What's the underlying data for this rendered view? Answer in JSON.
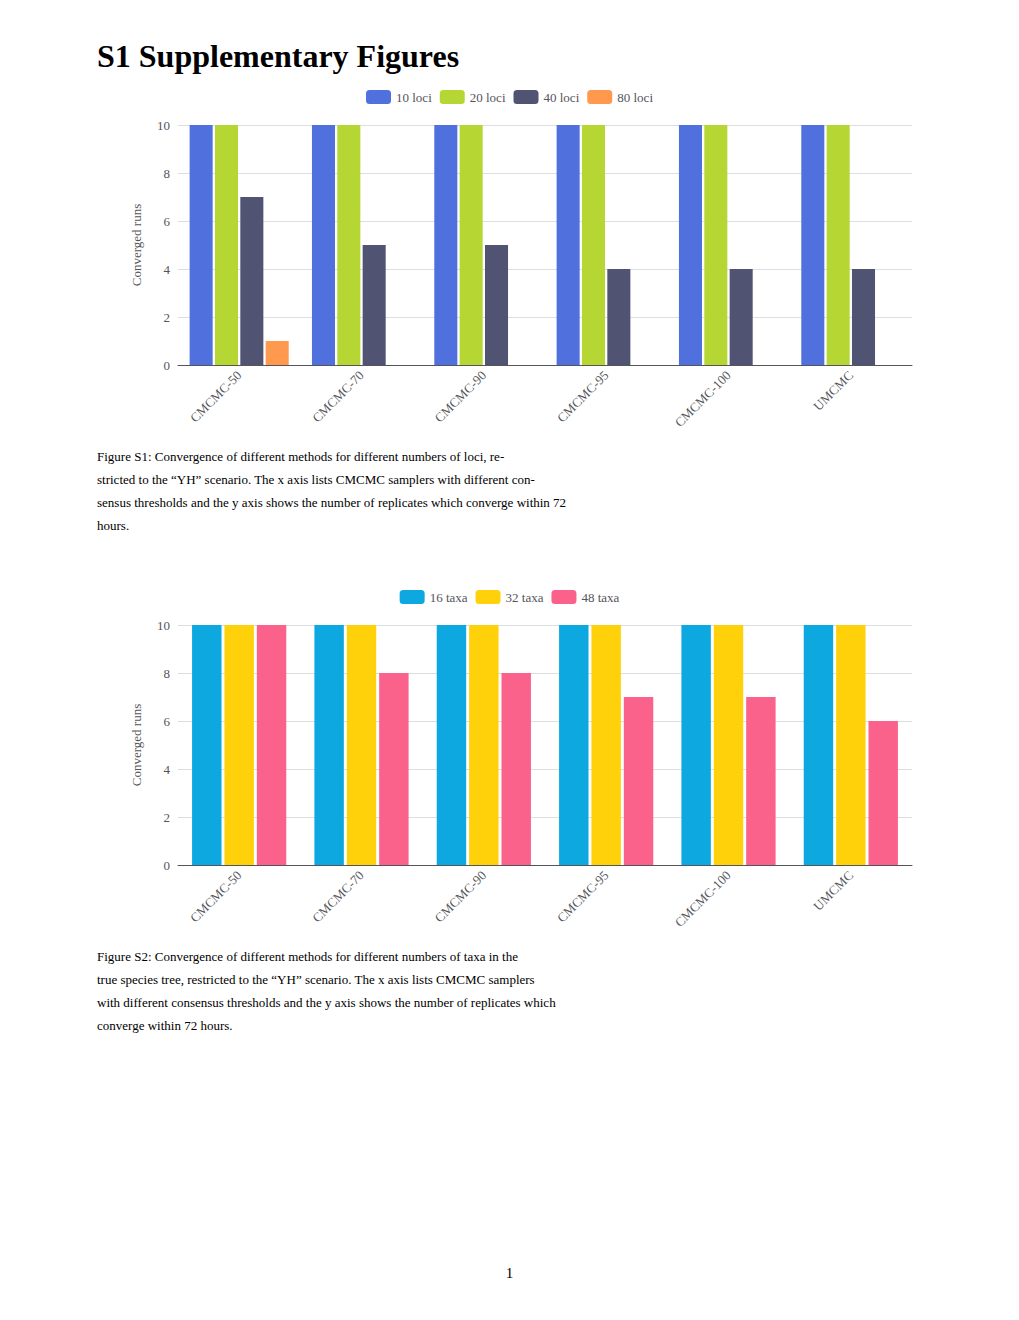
{
  "title": "S1 Supplementary Figures",
  "annotations": [
    "1"
  ],
  "chart_data": [
    {
      "type": "bar",
      "categories": [
        "CMCMC-50",
        "CMCMC-70",
        "CMCMC-90",
        "CMCMC-95",
        "CMCMC-100",
        "UMCMC"
      ],
      "series": [
        {
          "name": "10 loci",
          "values": [
            10,
            10,
            10,
            10,
            10,
            10
          ]
        },
        {
          "name": "20 loci",
          "values": [
            10,
            10,
            10,
            10,
            10,
            10
          ]
        },
        {
          "name": "40 loci",
          "values": [
            7,
            5,
            5,
            4,
            4,
            4
          ]
        },
        {
          "name": "80 loci",
          "values": [
            1,
            0,
            0,
            0,
            0,
            0
          ]
        }
      ],
      "ylabel": "Converged runs",
      "ylim": [
        0,
        10
      ],
      "yticks": [
        0,
        2,
        4,
        6,
        8,
        10
      ],
      "grid": true,
      "legend": "top",
      "annotations": [
        "Figure S1: Convergence of different methods for different numbers of loci, re-",
        "stricted to the “YH” scenario. The x axis lists CMCMC samplers with different con-",
        "sensus thresholds and the y axis shows the number of replicates which converge within 72",
        "hours."
      ]
    },
    {
      "type": "bar",
      "categories": [
        "CMCMC-50",
        "CMCMC-70",
        "CMCMC-90",
        "CMCMC-95",
        "CMCMC-100",
        "UMCMC"
      ],
      "series": [
        {
          "name": "16 taxa",
          "values": [
            10,
            10,
            10,
            10,
            10,
            10
          ]
        },
        {
          "name": "32 taxa",
          "values": [
            10,
            10,
            10,
            10,
            10,
            10
          ]
        },
        {
          "name": "48 taxa",
          "values": [
            10,
            8,
            8,
            7,
            7,
            6
          ]
        }
      ],
      "ylabel": "Converged runs",
      "ylim": [
        0,
        10
      ],
      "yticks": [
        0,
        2,
        4,
        6,
        8,
        10
      ],
      "grid": true,
      "legend": "top",
      "annotations": [
        "Figure S2: Convergence of different methods for different numbers of taxa in the",
        "true species tree, restricted to the “YH” scenario. The x axis lists CMCMC samplers",
        "with different consensus thresholds and the y axis shows the number of replicates which",
        "converge within 72 hours."
      ]
    }
  ]
}
